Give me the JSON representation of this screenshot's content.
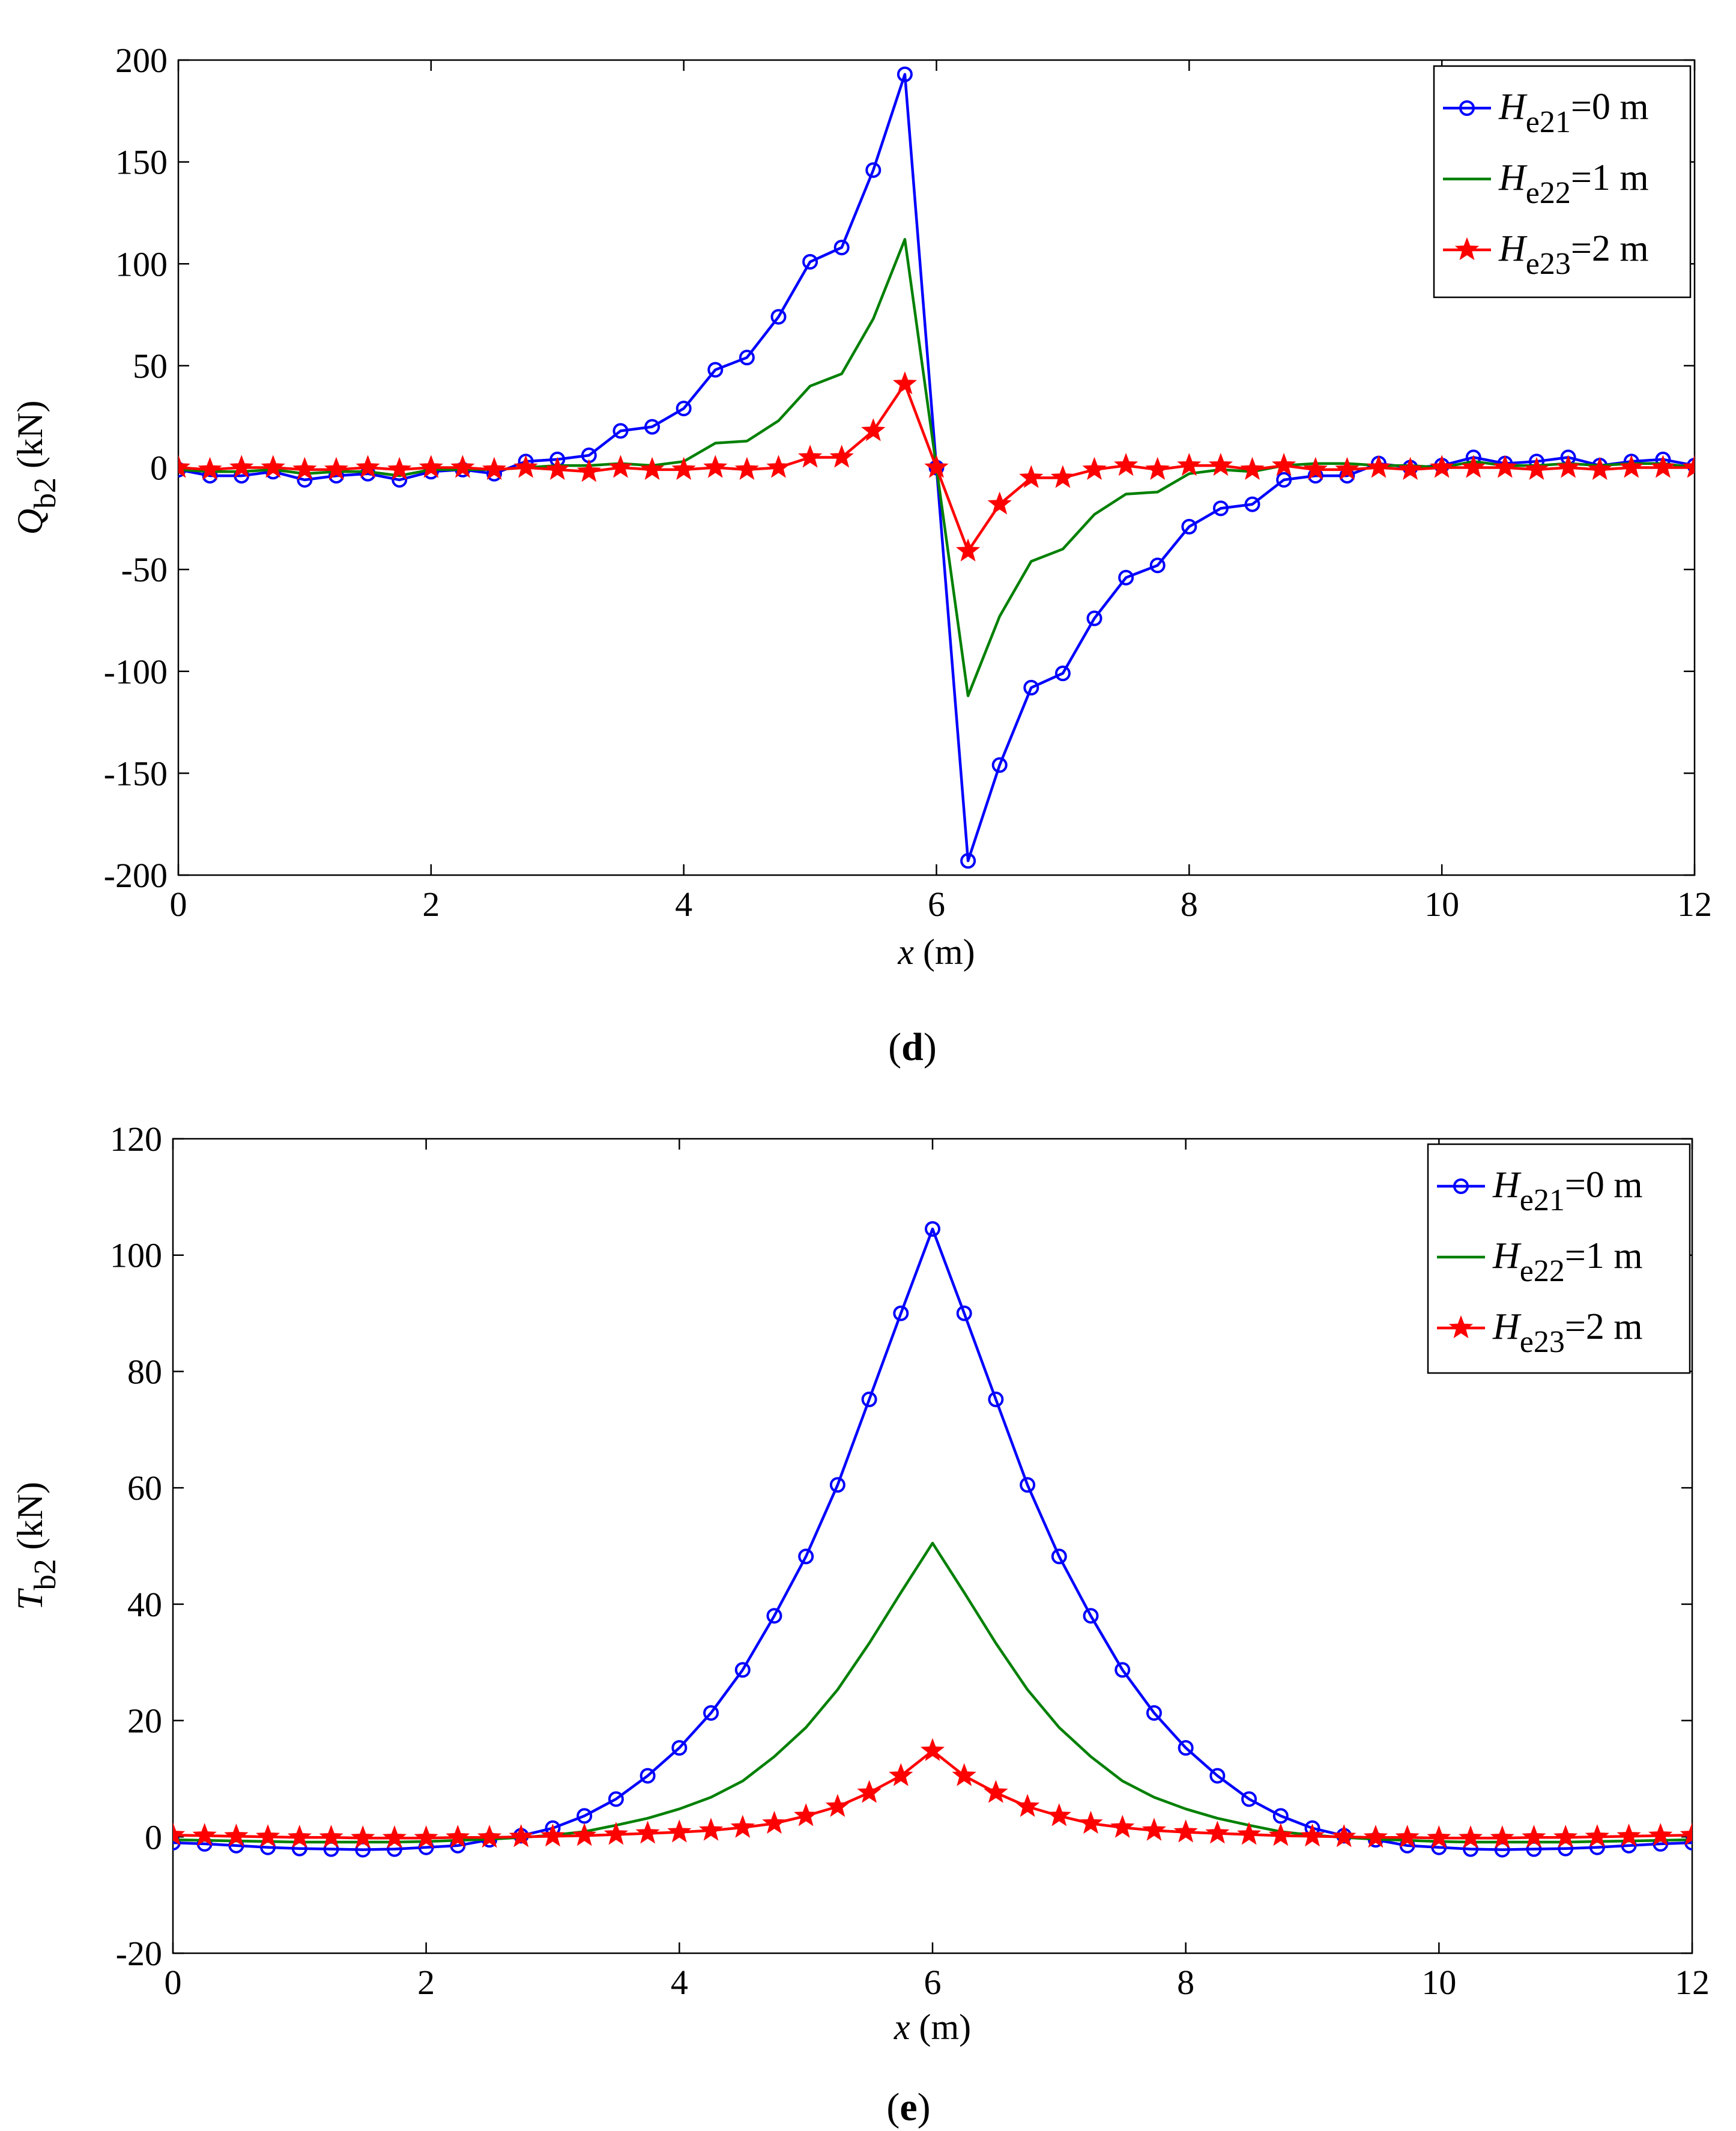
{
  "chart_data": [
    {
      "type": "line",
      "panel_label": {
        "open": "(",
        "letter": "d",
        "close": ")"
      },
      "ylabel": {
        "var": "Q",
        "sub": "b2",
        "unit": " (kN)"
      },
      "xlabel": {
        "var": "x",
        "unit": " (m)"
      },
      "xlim": [
        0,
        12
      ],
      "ylim": [
        -200,
        200
      ],
      "xticks": [
        0,
        2,
        4,
        6,
        8,
        10,
        12
      ],
      "xtick_labels": [
        "0",
        "2",
        "4",
        "6",
        "8",
        "10",
        "12"
      ],
      "yticks": [
        -200,
        -150,
        -100,
        -50,
        0,
        50,
        100,
        150,
        200
      ],
      "ytick_labels": [
        "-200",
        "-150",
        "-100",
        "-50",
        "0",
        "50",
        "100",
        "150",
        "200"
      ],
      "grid": false,
      "legend_position": "top-right",
      "x": [
        0,
        0.25,
        0.5,
        0.75,
        1,
        1.25,
        1.5,
        1.75,
        2,
        2.25,
        2.5,
        2.75,
        3,
        3.25,
        3.5,
        3.75,
        4,
        4.25,
        4.5,
        4.75,
        5,
        5.25,
        5.5,
        5.75,
        6,
        6.25,
        6.5,
        6.75,
        7,
        7.25,
        7.5,
        7.75,
        8,
        8.25,
        8.5,
        8.75,
        9,
        9.25,
        9.5,
        9.75,
        10,
        10.25,
        10.5,
        10.75,
        11,
        11.25,
        11.5,
        11.75,
        12
      ],
      "series": [
        {
          "name_var": "H",
          "name_sub": "e21",
          "name_rest": "=0 m",
          "color": "#0000ff",
          "marker": "circle",
          "values": [
            -1,
            -4,
            -4,
            -2,
            -6,
            -4,
            -3,
            -6,
            -2,
            -1,
            -3,
            3,
            4,
            6,
            18,
            20,
            29,
            48,
            54,
            74,
            101,
            108,
            146,
            193,
            0,
            -193,
            -146,
            -108,
            -101,
            -74,
            -54,
            -48,
            -29,
            -20,
            -18,
            -6,
            -4,
            -4,
            2,
            0,
            1,
            5,
            2,
            3,
            5,
            1,
            3,
            4,
            1
          ]
        },
        {
          "name_var": "H",
          "name_sub": "e22",
          "name_rest": "=1 m",
          "color": "#008000",
          "marker": "none",
          "values": [
            -1,
            -2,
            -2,
            -1,
            -3,
            -2,
            -2,
            -4,
            -1,
            -1,
            -1,
            0,
            1,
            1,
            2,
            1,
            3,
            12,
            13,
            23,
            40,
            46,
            73,
            112,
            0,
            -112,
            -73,
            -46,
            -40,
            -23,
            -13,
            -12,
            -3,
            -1,
            -2,
            1,
            2,
            2,
            1,
            1,
            0,
            3,
            1,
            1,
            2,
            1,
            2,
            2,
            0
          ]
        },
        {
          "name_var": "H",
          "name_sub": "e23",
          "name_rest": "=2 m",
          "color": "#ff0000",
          "marker": "star",
          "values": [
            0,
            -1,
            0,
            0,
            -1,
            -1,
            0,
            -1,
            0,
            0,
            -1,
            0,
            -1,
            -2,
            0,
            -1,
            -1,
            0,
            -1,
            0,
            5,
            5,
            18,
            41,
            0,
            -41,
            -18,
            -5,
            -5,
            -1,
            1,
            -1,
            1,
            1,
            -1,
            1,
            -1,
            -1,
            0,
            -1,
            0,
            0,
            0,
            -1,
            0,
            -1,
            0,
            0,
            0
          ]
        }
      ]
    },
    {
      "type": "line",
      "panel_label": {
        "open": "(",
        "letter": "e",
        "close": ")"
      },
      "ylabel": {
        "var": "T",
        "sub": "b2",
        "unit": " (kN)"
      },
      "xlabel": {
        "var": "x",
        "unit": " (m)"
      },
      "xlim": [
        0,
        12
      ],
      "ylim": [
        -20,
        120
      ],
      "xticks": [
        0,
        2,
        4,
        6,
        8,
        10,
        12
      ],
      "xtick_labels": [
        "0",
        "2",
        "4",
        "6",
        "8",
        "10",
        "12"
      ],
      "yticks": [
        -20,
        0,
        20,
        40,
        60,
        80,
        100,
        120
      ],
      "ytick_labels": [
        "-20",
        "0",
        "20",
        "40",
        "60",
        "80",
        "100",
        "120"
      ],
      "grid": false,
      "legend_position": "top-right",
      "x": [
        0,
        0.25,
        0.5,
        0.75,
        1,
        1.25,
        1.5,
        1.75,
        2,
        2.25,
        2.5,
        2.75,
        3,
        3.25,
        3.5,
        3.75,
        4,
        4.25,
        4.5,
        4.75,
        5,
        5.25,
        5.5,
        5.75,
        6,
        6.25,
        6.5,
        6.75,
        7,
        7.25,
        7.5,
        7.75,
        8,
        8.25,
        8.5,
        8.75,
        9,
        9.25,
        9.5,
        9.75,
        10,
        10.25,
        10.5,
        10.75,
        11,
        11.25,
        11.5,
        11.75,
        12
      ],
      "series": [
        {
          "name_var": "H",
          "name_sub": "e21",
          "name_rest": "=0 m",
          "color": "#0000ff",
          "marker": "circle",
          "values": [
            -1,
            -1.2,
            -1.5,
            -1.8,
            -2,
            -2.1,
            -2.2,
            -2.1,
            -1.8,
            -1.5,
            -0.5,
            0.2,
            1.5,
            3.6,
            6.5,
            10.5,
            15.3,
            21.3,
            28.7,
            38,
            48.2,
            60.5,
            75.2,
            90,
            104.5,
            90,
            75.2,
            60.5,
            48.2,
            38,
            28.7,
            21.3,
            15.3,
            10.5,
            6.5,
            3.6,
            1.5,
            0.2,
            -0.5,
            -1.5,
            -1.8,
            -2.1,
            -2.2,
            -2.1,
            -2,
            -1.8,
            -1.5,
            -1.2,
            -1
          ]
        },
        {
          "name_var": "H",
          "name_sub": "e22",
          "name_rest": "=1 m",
          "color": "#008000",
          "marker": "none",
          "values": [
            -0.5,
            -0.6,
            -0.7,
            -0.8,
            -0.9,
            -0.9,
            -0.9,
            -0.9,
            -0.8,
            -0.6,
            -0.4,
            -0.1,
            0.3,
            0.9,
            2,
            3.2,
            4.8,
            6.8,
            9.6,
            13.8,
            18.8,
            25.3,
            33.3,
            42,
            50.5,
            42,
            33.3,
            25.3,
            18.8,
            13.8,
            9.6,
            6.8,
            4.8,
            3.2,
            2,
            0.9,
            0.3,
            -0.1,
            -0.4,
            -0.6,
            -0.8,
            -0.9,
            -0.9,
            -0.9,
            -0.9,
            -0.8,
            -0.7,
            -0.6,
            -0.5
          ]
        },
        {
          "name_var": "H",
          "name_sub": "e23",
          "name_rest": "=2 m",
          "color": "#ff0000",
          "marker": "star",
          "values": [
            0.3,
            0.2,
            0.1,
            0,
            -0.1,
            -0.1,
            -0.2,
            -0.2,
            -0.2,
            -0.1,
            -0.1,
            0,
            0.1,
            0.2,
            0.4,
            0.6,
            0.8,
            1.1,
            1.6,
            2.3,
            3.6,
            5.2,
            7.6,
            10.5,
            14.8,
            10.5,
            7.6,
            5.2,
            3.6,
            2.3,
            1.6,
            1.1,
            0.8,
            0.6,
            0.4,
            0.2,
            0.1,
            0,
            -0.1,
            -0.1,
            -0.2,
            -0.2,
            -0.2,
            -0.1,
            -0.1,
            0,
            0.1,
            0.2,
            0.3
          ]
        }
      ]
    }
  ]
}
